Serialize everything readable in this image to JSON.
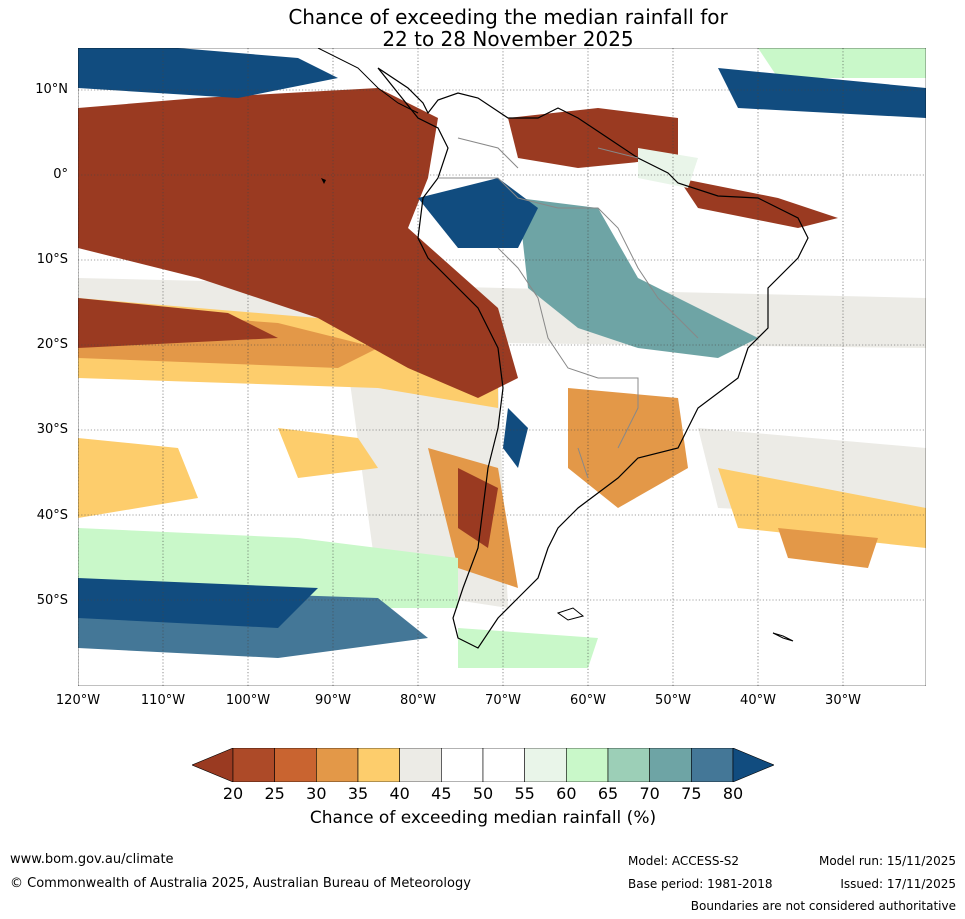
{
  "title": {
    "line1": "Chance of exceeding the median rainfall for",
    "line2": "22 to 28 November 2025"
  },
  "axes": {
    "lat_labels": [
      "10°N",
      "0°",
      "10°S",
      "20°S",
      "30°S",
      "40°S",
      "50°S"
    ],
    "lon_labels": [
      "120°W",
      "110°W",
      "100°W",
      "90°W",
      "80°W",
      "70°W",
      "60°W",
      "50°W",
      "40°W",
      "30°W"
    ]
  },
  "colorbar": {
    "label": "Chance of exceeding median rainfall (%)",
    "ticks": [
      "20",
      "25",
      "30",
      "35",
      "40",
      "45",
      "50",
      "55",
      "60",
      "65",
      "70",
      "75",
      "80"
    ],
    "colors": [
      "#9a3a21",
      "#ad4a28",
      "#c96430",
      "#e39848",
      "#fdcd6c",
      "#ecebe6",
      "#ffffff",
      "#ffffff",
      "#e9f5e9",
      "#c9f8c9",
      "#9ccfb7",
      "#6ea4a5",
      "#447797",
      "#114c7f"
    ]
  },
  "footer": {
    "url": "www.bom.gov.au/climate",
    "copyright": "© Commonwealth of Australia 2025, Australian Bureau of Meteorology",
    "model": "Model: ACCESS-S2",
    "base_period": "Base period: 1981-2018",
    "model_run": "Model run: 15/11/2025",
    "issued": "Issued: 17/11/2025",
    "boundaries": "Boundaries are not considered authoritative"
  }
}
